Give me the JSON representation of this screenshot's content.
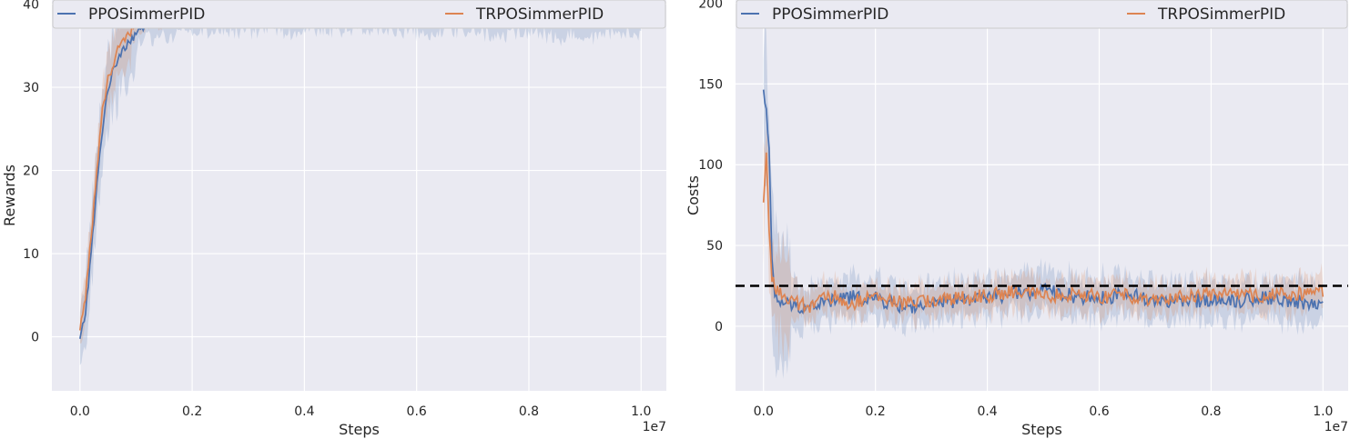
{
  "chart_data": [
    {
      "type": "line",
      "xlabel": "Steps",
      "ylabel": "Rewards",
      "x_offset_label": "1e7",
      "xlim": [
        -0.05,
        1.045
      ],
      "ylim": [
        -6.5,
        40.5
      ],
      "xticks": [
        0.0,
        0.2,
        0.4,
        0.6,
        0.8,
        1.0
      ],
      "xtick_labels": [
        "0.0",
        "0.2",
        "0.4",
        "0.6",
        "0.8",
        "1.0"
      ],
      "yticks": [
        0,
        10,
        20,
        30,
        40
      ],
      "ytick_labels": [
        "0",
        "10",
        "20",
        "30",
        "40"
      ],
      "grid": true,
      "legend": {
        "placement": "top",
        "entries": [
          "PPOSimmerPID",
          "TRPOSimmerPID"
        ]
      },
      "series": [
        {
          "name": "PPOSimmerPID",
          "color": "#4c72b0",
          "x": [
            0.0,
            0.01,
            0.02,
            0.03,
            0.04,
            0.05,
            0.06,
            0.07,
            0.08,
            0.1,
            0.12,
            0.15,
            0.2,
            0.3,
            0.4,
            0.5,
            0.6,
            0.7,
            0.75,
            0.8,
            0.85,
            0.9,
            0.95,
            1.0
          ],
          "y": [
            -0.5,
            3,
            10,
            18,
            25,
            30,
            32,
            34,
            35,
            36.5,
            37.5,
            38,
            38.5,
            38.5,
            38.5,
            39,
            38.5,
            38.5,
            38,
            38.5,
            37.8,
            38,
            38.2,
            38
          ],
          "band": 1.5
        },
        {
          "name": "TRPOSimmerPID",
          "color": "#dd8452",
          "x": [
            0.0,
            0.01,
            0.02,
            0.03,
            0.04,
            0.05,
            0.06,
            0.07,
            0.08,
            0.1,
            0.12,
            0.15,
            0.2,
            0.3,
            0.4,
            0.5,
            0.6,
            0.7,
            0.8,
            0.9,
            1.0
          ],
          "y": [
            0.5,
            5,
            12,
            20,
            27,
            31,
            33,
            35,
            36,
            37.5,
            38,
            38.5,
            39,
            39,
            39.3,
            39.5,
            39.5,
            39.6,
            39.5,
            39.5,
            39.3
          ],
          "band": 1.0
        }
      ]
    },
    {
      "type": "line",
      "xlabel": "Steps",
      "ylabel": "Costs",
      "x_offset_label": "1e7",
      "xlim": [
        -0.05,
        1.045
      ],
      "ylim": [
        -40,
        202
      ],
      "xticks": [
        0.0,
        0.2,
        0.4,
        0.6,
        0.8,
        1.0
      ],
      "xtick_labels": [
        "0.0",
        "0.2",
        "0.4",
        "0.6",
        "0.8",
        "1.0"
      ],
      "yticks": [
        0,
        50,
        100,
        150,
        200
      ],
      "ytick_labels": [
        "0",
        "50",
        "100",
        "150",
        "200"
      ],
      "grid": true,
      "threshold": 25,
      "legend": {
        "placement": "top",
        "entries": [
          "PPOSimmerPID",
          "TRPOSimmerPID"
        ]
      },
      "series": [
        {
          "name": "PPOSimmerPID",
          "color": "#4c72b0",
          "x": [
            0.0,
            0.005,
            0.01,
            0.015,
            0.02,
            0.03,
            0.05,
            0.08,
            0.1,
            0.13,
            0.15,
            0.2,
            0.25,
            0.3,
            0.35,
            0.4,
            0.45,
            0.5,
            0.55,
            0.6,
            0.65,
            0.7,
            0.75,
            0.8,
            0.85,
            0.9,
            0.95,
            1.0
          ],
          "y": [
            145,
            135,
            110,
            40,
            18,
            15,
            13,
            12,
            14,
            16,
            18,
            17,
            12,
            13,
            16,
            18,
            20,
            22,
            19,
            17,
            20,
            16,
            15,
            17,
            16,
            18,
            15,
            14
          ],
          "band": 10
        },
        {
          "name": "TRPOSimmerPID",
          "color": "#dd8452",
          "x": [
            0.0,
            0.005,
            0.01,
            0.015,
            0.02,
            0.03,
            0.05,
            0.08,
            0.1,
            0.13,
            0.15,
            0.2,
            0.25,
            0.3,
            0.35,
            0.4,
            0.45,
            0.5,
            0.55,
            0.6,
            0.65,
            0.7,
            0.75,
            0.8,
            0.85,
            0.9,
            0.95,
            1.0
          ],
          "y": [
            75,
            110,
            60,
            30,
            25,
            20,
            15,
            12,
            16,
            18,
            14,
            18,
            14,
            16,
            17,
            19,
            21,
            19,
            20,
            18,
            19,
            17,
            18,
            20,
            19,
            19,
            20,
            21
          ],
          "band": 8
        }
      ]
    }
  ]
}
